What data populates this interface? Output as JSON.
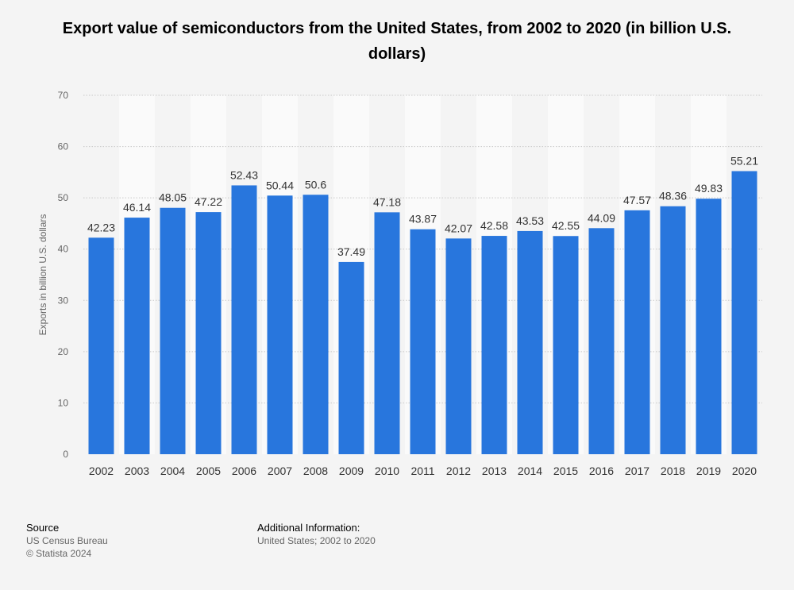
{
  "chart_data": {
    "type": "bar",
    "title": "Export value of semiconductors from the United States, from 2002 to 2020 (in billion U.S. dollars)",
    "ylabel": "Exports in billion U.S. dollars",
    "xlabel": "",
    "categories": [
      "2002",
      "2003",
      "2004",
      "2005",
      "2006",
      "2007",
      "2008",
      "2009",
      "2010",
      "2011",
      "2012",
      "2013",
      "2014",
      "2015",
      "2016",
      "2017",
      "2018",
      "2019",
      "2020"
    ],
    "values": [
      42.23,
      46.14,
      48.05,
      47.22,
      52.43,
      50.44,
      50.6,
      37.49,
      47.18,
      43.87,
      42.07,
      42.58,
      43.53,
      42.55,
      44.09,
      47.57,
      48.36,
      49.83,
      55.21
    ],
    "value_labels": [
      "42.23",
      "46.14",
      "48.05",
      "47.22",
      "52.43",
      "50.44",
      "50.6",
      "37.49",
      "47.18",
      "43.87",
      "42.07",
      "42.58",
      "43.53",
      "42.55",
      "44.09",
      "47.57",
      "48.36",
      "49.83",
      "55.21"
    ],
    "ylim": [
      0,
      70
    ],
    "yticks": [
      0,
      10,
      20,
      30,
      40,
      50,
      60,
      70
    ],
    "grid": true,
    "bar_color": "#2876dd",
    "alt_band_color": "#fafafa"
  },
  "footer": {
    "source_heading": "Source",
    "source_lines": [
      "US Census Bureau",
      "© Statista 2024"
    ],
    "info_heading": "Additional Information:",
    "info_text": "United States; 2002 to 2020"
  }
}
